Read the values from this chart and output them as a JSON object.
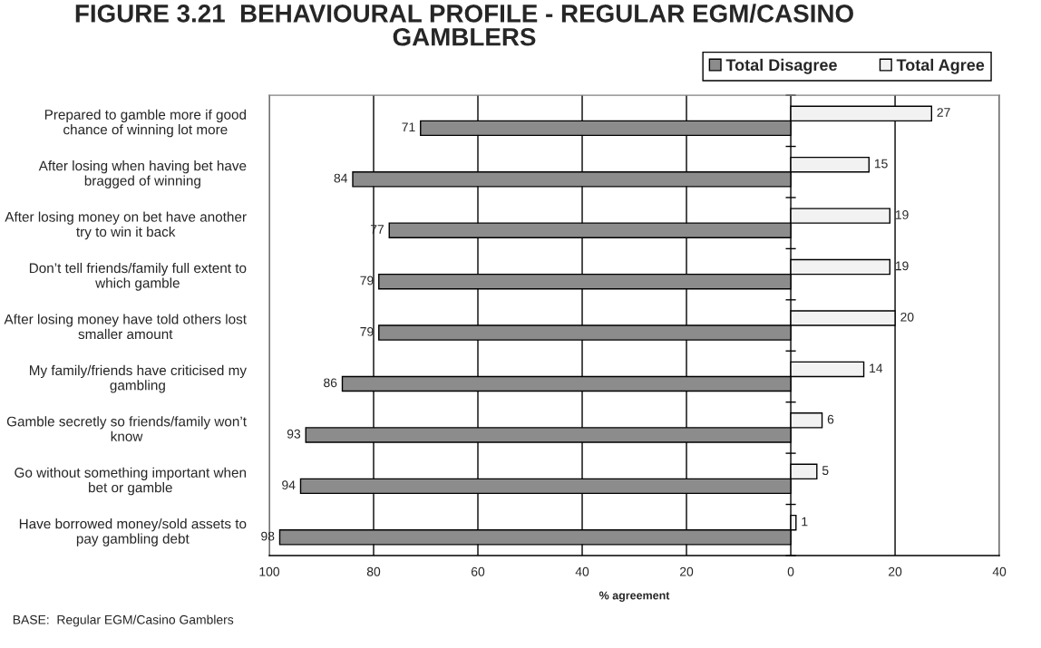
{
  "chart_data": {
    "type": "bar",
    "orientation": "horizontal",
    "title": "FIGURE 3.21  BEHAVIOURAL PROFILE - REGULAR EGM/CASINO GAMBLERS",
    "xlabel": "% agreement",
    "categories": [
      "Prepared to gamble more if good chance of winning lot more",
      "After losing when having bet have bragged of winning",
      "After losing money on bet have another try to win it back",
      "Don’t tell friends/family full extent to which gamble",
      "After losing money have told others lost smaller amount",
      "My family/friends have criticised my gambling",
      "Gamble secretly so friends/family won’t know",
      "Go without something important when bet or gamble",
      "Have borrowed money/sold assets to pay gambling debt"
    ],
    "series": [
      {
        "name": "Total Disagree",
        "color": "#8c8c8c",
        "base": [
          -71,
          -84,
          -77,
          -79,
          -79,
          -86,
          -93,
          -94,
          -98
        ],
        "values": [
          71,
          84,
          77,
          79,
          79,
          86,
          93,
          94,
          98
        ],
        "value_labels": [
          "71",
          "84",
          "77",
          "79",
          "79",
          "86",
          "93",
          "94",
          "98"
        ]
      },
      {
        "name": "Total Agree",
        "color": "#f2f2f2",
        "values": [
          27,
          15,
          19,
          19,
          20,
          14,
          6,
          5,
          1
        ],
        "value_labels": [
          "27",
          "15",
          "19",
          "19",
          "20",
          "14",
          "6",
          "5",
          "1"
        ]
      }
    ],
    "xlim": [
      -100,
      40
    ],
    "xticks": [
      {
        "value": -100,
        "label": "100"
      },
      {
        "value": -80,
        "label": "80"
      },
      {
        "value": -60,
        "label": "60"
      },
      {
        "value": -40,
        "label": "40"
      },
      {
        "value": -20,
        "label": "20"
      },
      0,
      20,
      40
    ],
    "grid": "x",
    "legend": "top right",
    "annotations": [
      "BASE:  Regular EGM/Casino Gamblers"
    ]
  }
}
